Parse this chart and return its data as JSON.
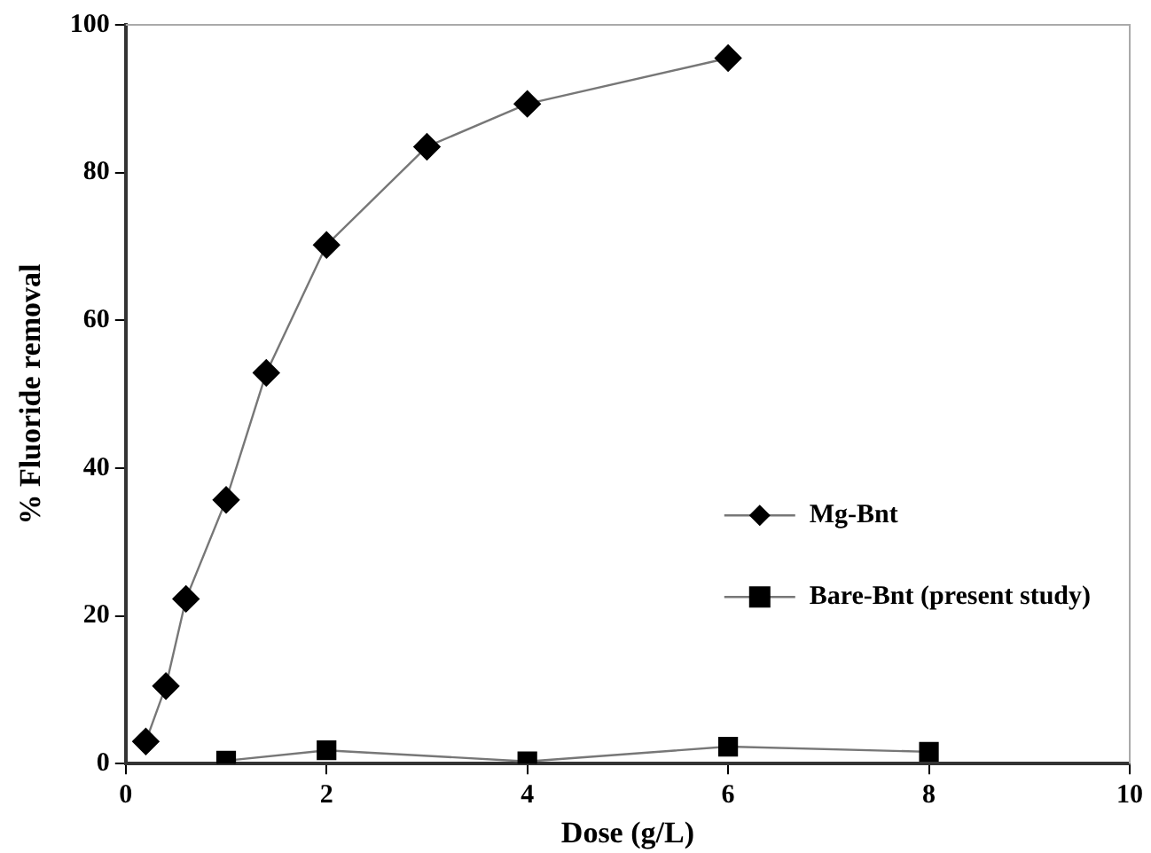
{
  "chart_data": {
    "type": "line",
    "xlabel": "Dose (g/L)",
    "ylabel": "% Fluoride removal",
    "xlim": [
      0,
      10
    ],
    "xticks": [
      0,
      2,
      4,
      6,
      8,
      10
    ],
    "ylim": [
      0,
      100
    ],
    "yticks": [
      0,
      20,
      40,
      60,
      80,
      100
    ],
    "grid": false,
    "legend": "right",
    "line_style": "solid",
    "series": [
      {
        "name": "Mg-Bnt",
        "color": "#000000",
        "marker": "diamond",
        "x": [
          0.2,
          0.4,
          0.6,
          1.0,
          1.4,
          2,
          3,
          4,
          6
        ],
        "values": [
          3,
          10.5,
          22.3,
          35.7,
          52.9,
          70.2,
          83.5,
          89.3,
          95.5
        ]
      },
      {
        "name": "Bare-Bnt (present study)",
        "color": "#000000",
        "marker": "square",
        "x": [
          1,
          2,
          4,
          6,
          8
        ],
        "values": [
          0.4,
          1.8,
          0.3,
          2.3,
          1.6
        ]
      }
    ]
  }
}
